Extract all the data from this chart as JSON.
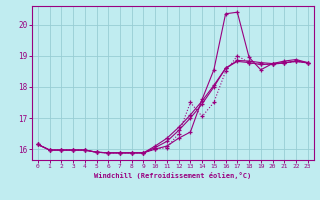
{
  "xlabel": "Windchill (Refroidissement éolien,°C)",
  "bg_color": "#c0ecf0",
  "grid_color": "#98cdd4",
  "line_color": "#990080",
  "xlim": [
    -0.5,
    23.5
  ],
  "ylim": [
    15.65,
    20.6
  ],
  "xticks": [
    0,
    1,
    2,
    3,
    4,
    5,
    6,
    7,
    8,
    9,
    10,
    11,
    12,
    13,
    14,
    15,
    16,
    17,
    18,
    19,
    20,
    21,
    22,
    23
  ],
  "yticks": [
    16,
    17,
    18,
    19,
    20
  ],
  "line1_x": [
    0,
    1,
    2,
    3,
    4,
    5,
    6,
    7,
    8,
    9,
    10,
    11,
    12,
    13,
    14,
    15,
    16,
    17,
    18,
    19,
    20,
    21,
    22,
    23
  ],
  "line1_y": [
    16.15,
    15.97,
    15.97,
    15.97,
    15.97,
    15.9,
    15.88,
    15.88,
    15.88,
    15.88,
    16.0,
    16.1,
    16.35,
    16.55,
    17.6,
    18.55,
    20.35,
    20.4,
    18.95,
    18.55,
    18.75,
    18.83,
    18.88,
    18.78
  ],
  "line2_x": [
    0,
    1,
    2,
    3,
    4,
    5,
    6,
    7,
    8,
    9,
    10,
    11,
    12,
    13,
    14,
    15,
    16,
    17,
    18,
    19,
    20,
    21,
    22,
    23
  ],
  "line2_y": [
    16.15,
    15.97,
    15.97,
    15.97,
    15.97,
    15.9,
    15.88,
    15.88,
    15.88,
    15.88,
    16.05,
    16.25,
    16.6,
    17.0,
    17.45,
    18.0,
    18.6,
    18.85,
    18.83,
    18.78,
    18.75,
    18.78,
    18.83,
    18.78
  ],
  "line3_x": [
    0,
    1,
    2,
    3,
    4,
    5,
    6,
    7,
    8,
    9,
    10,
    11,
    12,
    13,
    14,
    15,
    16,
    17,
    18,
    19,
    20,
    21,
    22,
    23
  ],
  "line3_y": [
    16.15,
    15.97,
    15.97,
    15.97,
    15.97,
    15.9,
    15.88,
    15.88,
    15.88,
    15.88,
    16.1,
    16.35,
    16.7,
    17.1,
    17.55,
    18.05,
    18.6,
    18.82,
    18.78,
    18.72,
    18.73,
    18.77,
    18.82,
    18.77
  ],
  "line4_x": [
    0,
    1,
    2,
    3,
    4,
    5,
    6,
    7,
    8,
    9,
    10,
    11,
    12,
    13,
    14,
    15,
    16,
    17,
    18,
    19,
    20,
    21,
    22,
    23
  ],
  "line4_y": [
    16.15,
    15.97,
    15.97,
    15.97,
    15.97,
    15.9,
    15.88,
    15.88,
    15.88,
    15.88,
    16.0,
    16.05,
    16.5,
    17.5,
    17.05,
    17.5,
    18.5,
    19.0,
    18.78,
    18.72,
    18.73,
    18.77,
    18.82,
    18.77
  ]
}
